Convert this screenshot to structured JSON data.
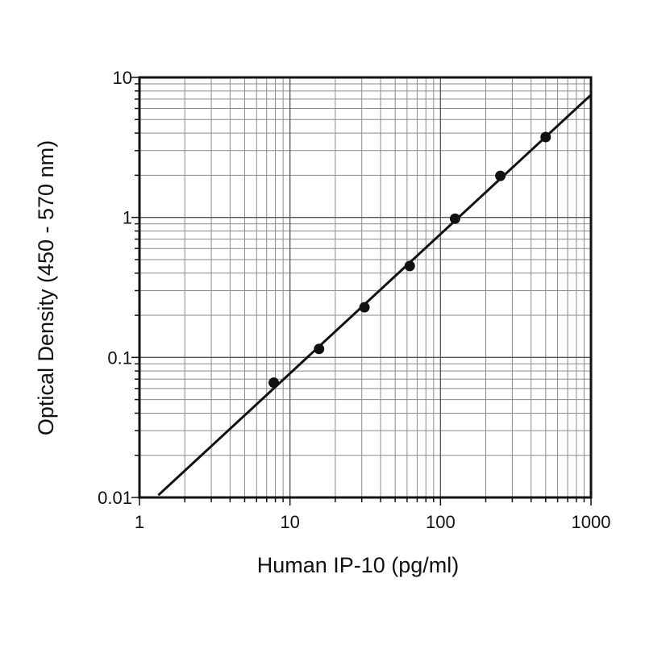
{
  "chart_data": {
    "type": "scatter",
    "title": "",
    "xlabel": "Human IP-10 (pg/ml)",
    "ylabel": "Optical Density (450 - 570 nm)",
    "xscale": "log",
    "yscale": "log",
    "xlim": [
      1,
      1000
    ],
    "ylim": [
      0.01,
      10
    ],
    "x_ticks": [
      "1",
      "10",
      "100",
      "1000"
    ],
    "y_ticks": [
      "0.01",
      "0.1",
      "1",
      "10"
    ],
    "grid": true,
    "series": [
      {
        "points": [
          {
            "x": 7.8,
            "y": 0.066
          },
          {
            "x": 15.6,
            "y": 0.115
          },
          {
            "x": 31.25,
            "y": 0.228
          },
          {
            "x": 62.5,
            "y": 0.45
          },
          {
            "x": 125,
            "y": 0.98
          },
          {
            "x": 250,
            "y": 1.98
          },
          {
            "x": 500,
            "y": 3.75
          }
        ]
      }
    ],
    "fit_line": {
      "x": [
        1.35,
        1000
      ],
      "y": [
        0.0105,
        7.5
      ]
    }
  }
}
